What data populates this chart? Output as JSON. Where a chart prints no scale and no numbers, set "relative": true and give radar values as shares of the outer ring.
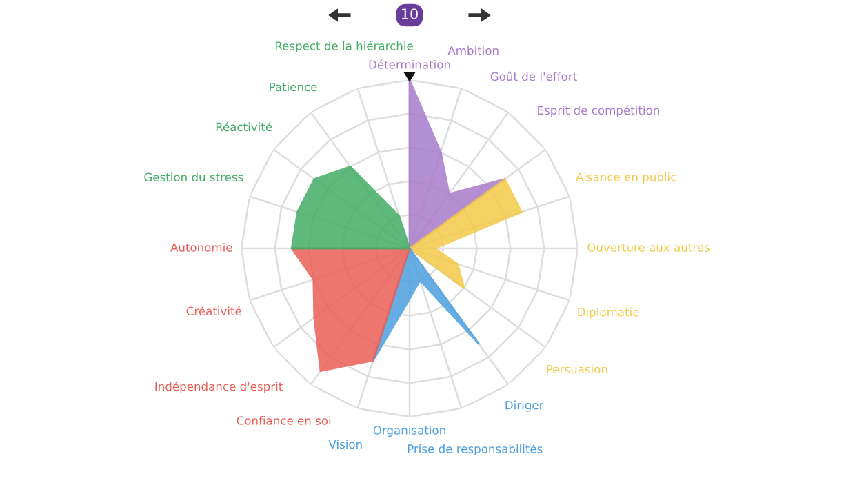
{
  "chart_data": {
    "type": "radar",
    "relative": true,
    "grid": true,
    "categories": [
      "Détermination",
      "Ambition",
      "Goût de l'effort",
      "Esprit de compétition",
      "Aisance en public",
      "Ouverture aux autres",
      "Diplomatie",
      "Persuasion",
      "Diriger",
      "Prise de responsabilités",
      "Organisation",
      "Vision",
      "Confiance en soi",
      "Indépendance d'esprit",
      "Créativité",
      "Autonomie",
      "Gestion du stress",
      "Réactivité",
      "Patience",
      "Respect de la hiérarchie"
    ],
    "series": [
      {
        "color": "#a77bca",
        "values": [
          1.0,
          0.6,
          0.4,
          0.7,
          null,
          null,
          null,
          null,
          null,
          null,
          null,
          null,
          null,
          null,
          null,
          null,
          null,
          null,
          null,
          null
        ]
      },
      {
        "color": "#f4c94a",
        "values": [
          null,
          null,
          null,
          0.7,
          0.7,
          0.15,
          0.3,
          0.4,
          null,
          null,
          null,
          null,
          null,
          null,
          null,
          null,
          null,
          null,
          null,
          null
        ]
      },
      {
        "color": "#4b9fdf",
        "values": [
          null,
          null,
          null,
          null,
          null,
          null,
          null,
          null,
          0.7,
          0.2,
          0.3,
          0.7,
          null,
          null,
          null,
          null,
          null,
          null,
          null,
          null
        ]
      },
      {
        "color": "#ea5f56",
        "values": [
          null,
          null,
          null,
          null,
          null,
          null,
          null,
          null,
          null,
          null,
          null,
          0.7,
          0.9,
          0.7,
          0.6,
          0.7,
          null,
          null,
          null,
          null
        ]
      },
      {
        "color": "#43ad66",
        "values": [
          null,
          null,
          null,
          null,
          null,
          null,
          null,
          null,
          null,
          null,
          null,
          null,
          null,
          null,
          null,
          0.7,
          0.7,
          0.7,
          0.6,
          0.2
        ]
      }
    ],
    "annotations": [
      "10"
    ]
  }
}
